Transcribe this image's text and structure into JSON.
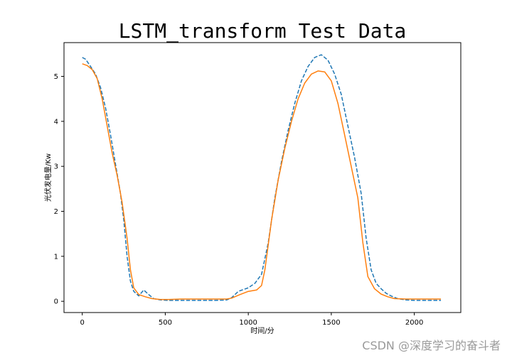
{
  "chart_data": {
    "type": "line",
    "title": "LSTM_transform Test Data",
    "xlabel": "时间/分",
    "ylabel": "光伏发电量/Kw",
    "xlim": [
      -110,
      2280
    ],
    "ylim": [
      -0.25,
      5.75
    ],
    "xticks": [
      0,
      500,
      1000,
      1500,
      2000
    ],
    "yticks": [
      0,
      1,
      2,
      3,
      4,
      5
    ],
    "grid": false,
    "series": [
      {
        "color": "#1f77b4",
        "dash": "dashed",
        "points": [
          [
            0,
            5.42
          ],
          [
            20,
            5.38
          ],
          [
            50,
            5.22
          ],
          [
            80,
            5.05
          ],
          [
            110,
            4.75
          ],
          [
            140,
            4.3
          ],
          [
            170,
            3.7
          ],
          [
            200,
            3.05
          ],
          [
            230,
            2.4
          ],
          [
            250,
            1.8
          ],
          [
            270,
            1.0
          ],
          [
            290,
            0.45
          ],
          [
            310,
            0.22
          ],
          [
            340,
            0.12
          ],
          [
            370,
            0.25
          ],
          [
            400,
            0.15
          ],
          [
            430,
            0.06
          ],
          [
            470,
            0.03
          ],
          [
            520,
            0.02
          ],
          [
            600,
            0.02
          ],
          [
            700,
            0.02
          ],
          [
            800,
            0.02
          ],
          [
            870,
            0.03
          ],
          [
            900,
            0.08
          ],
          [
            940,
            0.22
          ],
          [
            1000,
            0.3
          ],
          [
            1040,
            0.4
          ],
          [
            1080,
            0.6
          ],
          [
            1120,
            1.3
          ],
          [
            1160,
            2.3
          ],
          [
            1200,
            3.1
          ],
          [
            1240,
            3.8
          ],
          [
            1280,
            4.4
          ],
          [
            1320,
            4.9
          ],
          [
            1360,
            5.22
          ],
          [
            1400,
            5.42
          ],
          [
            1440,
            5.48
          ],
          [
            1480,
            5.36
          ],
          [
            1520,
            5.05
          ],
          [
            1560,
            4.6
          ],
          [
            1600,
            3.9
          ],
          [
            1640,
            3.2
          ],
          [
            1680,
            2.4
          ],
          [
            1710,
            1.4
          ],
          [
            1740,
            0.7
          ],
          [
            1770,
            0.4
          ],
          [
            1800,
            0.28
          ],
          [
            1830,
            0.18
          ],
          [
            1860,
            0.12
          ],
          [
            1900,
            0.06
          ],
          [
            1950,
            0.03
          ],
          [
            2000,
            0.02
          ],
          [
            2160,
            0.02
          ]
        ]
      },
      {
        "color": "#ff7f0e",
        "dash": "solid",
        "points": [
          [
            0,
            5.28
          ],
          [
            30,
            5.24
          ],
          [
            60,
            5.15
          ],
          [
            90,
            4.95
          ],
          [
            120,
            4.5
          ],
          [
            150,
            3.9
          ],
          [
            180,
            3.3
          ],
          [
            210,
            2.8
          ],
          [
            240,
            2.2
          ],
          [
            270,
            1.4
          ],
          [
            290,
            0.7
          ],
          [
            310,
            0.3
          ],
          [
            340,
            0.15
          ],
          [
            380,
            0.1
          ],
          [
            420,
            0.06
          ],
          [
            470,
            0.04
          ],
          [
            520,
            0.04
          ],
          [
            600,
            0.05
          ],
          [
            700,
            0.05
          ],
          [
            800,
            0.05
          ],
          [
            870,
            0.05
          ],
          [
            900,
            0.07
          ],
          [
            950,
            0.15
          ],
          [
            1000,
            0.22
          ],
          [
            1050,
            0.25
          ],
          [
            1080,
            0.35
          ],
          [
            1100,
            0.7
          ],
          [
            1140,
            1.8
          ],
          [
            1180,
            2.7
          ],
          [
            1220,
            3.4
          ],
          [
            1260,
            4.0
          ],
          [
            1300,
            4.5
          ],
          [
            1340,
            4.85
          ],
          [
            1380,
            5.05
          ],
          [
            1420,
            5.12
          ],
          [
            1460,
            5.1
          ],
          [
            1500,
            4.9
          ],
          [
            1540,
            4.4
          ],
          [
            1580,
            3.7
          ],
          [
            1620,
            3.0
          ],
          [
            1660,
            2.3
          ],
          [
            1690,
            1.3
          ],
          [
            1720,
            0.55
          ],
          [
            1760,
            0.28
          ],
          [
            1800,
            0.16
          ],
          [
            1840,
            0.1
          ],
          [
            1880,
            0.06
          ],
          [
            1950,
            0.05
          ],
          [
            2000,
            0.05
          ],
          [
            2160,
            0.05
          ]
        ]
      }
    ]
  },
  "watermark": "CSDN @深度学习的奋斗者"
}
